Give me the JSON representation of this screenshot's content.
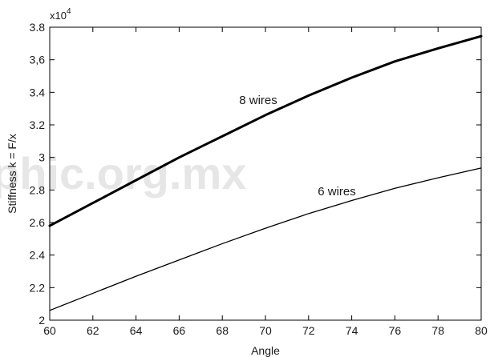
{
  "chart_data": {
    "type": "line",
    "xlabel": "Angle",
    "ylabel": "Stiffness k = F/x",
    "y_multiplier": "x10",
    "y_multiplier_exponent": "4",
    "xlim": [
      60,
      80
    ],
    "ylim": [
      2,
      3.8
    ],
    "x_ticks": [
      "60",
      "62",
      "64",
      "66",
      "68",
      "70",
      "72",
      "74",
      "76",
      "78",
      "80"
    ],
    "y_ticks": [
      "2",
      "2.2",
      "2.4",
      "2.6",
      "2.8",
      "3",
      "3.2",
      "3.4",
      "3,6",
      "3.8"
    ],
    "grid": false,
    "series": [
      {
        "name": "8 wires",
        "x": [
          60,
          62,
          64,
          66,
          68,
          70,
          72,
          74,
          76,
          78,
          80
        ],
        "y": [
          2.58,
          2.72,
          2.86,
          3.0,
          3.13,
          3.26,
          3.38,
          3.49,
          3.59,
          3.67,
          3.745
        ],
        "line_color": "#000000",
        "bold": true
      },
      {
        "name": "6 wires",
        "x": [
          60,
          62,
          64,
          66,
          68,
          70,
          72,
          74,
          76,
          78,
          80
        ],
        "y": [
          2.06,
          2.165,
          2.27,
          2.37,
          2.47,
          2.565,
          2.655,
          2.735,
          2.81,
          2.875,
          2.935
        ],
        "line_color": "#000000",
        "bold": false
      }
    ]
  },
  "watermark": "phic.org.mx"
}
